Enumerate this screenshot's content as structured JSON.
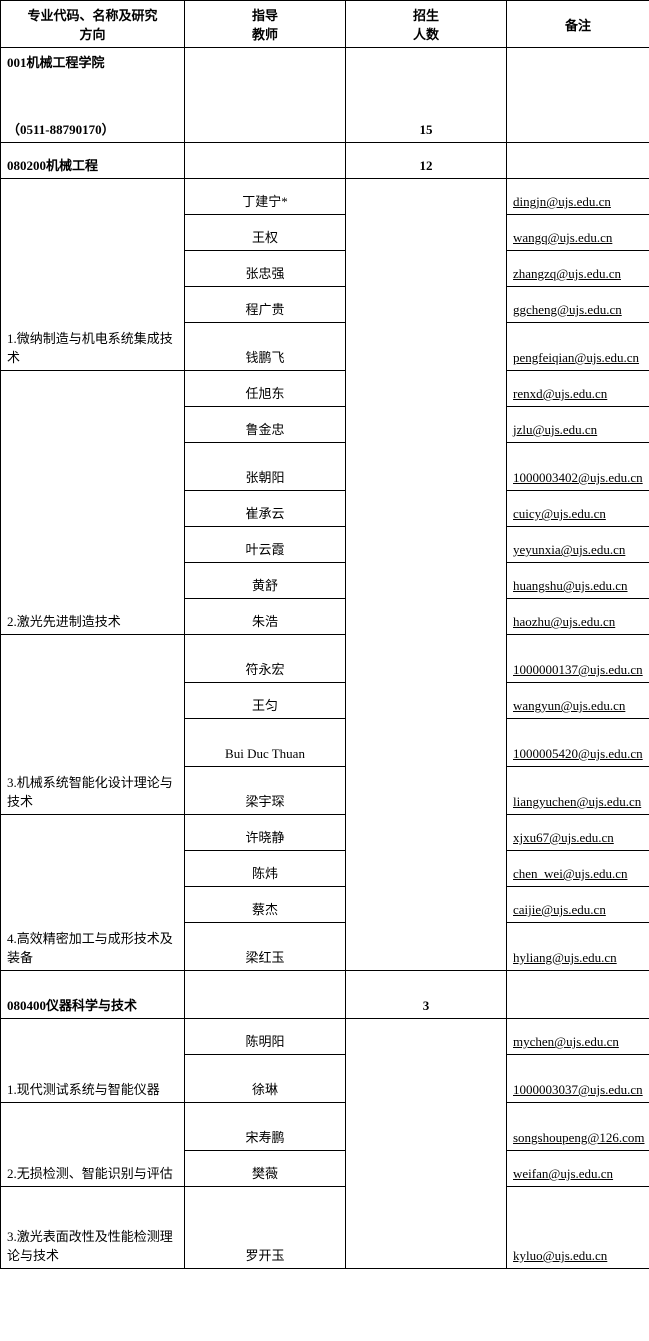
{
  "headers": {
    "col1_l1": "专业代码、名称及研究",
    "col1_l2": "方向",
    "col2_l1": "指导",
    "col2_l2": "教师",
    "col3_l1": "招生",
    "col3_l2": "人数",
    "col4": "备注"
  },
  "dept": {
    "name": "001机械工程学院",
    "phone": "（0511-88790170）",
    "count": "15"
  },
  "m1": {
    "code": "080200机械工程",
    "count": "12",
    "d1": {
      "name": "1.微纳制造与机电系统集成技术",
      "t": [
        "丁建宁*",
        "王权",
        "张忠强",
        "程广贵",
        "钱鹏飞"
      ],
      "e": [
        "dingjn@ujs.edu.cn",
        "wangq@ujs.edu.cn",
        "zhangzq@ujs.edu.cn",
        "ggcheng@ujs.edu.cn",
        "pengfeiqian@ujs.edu.cn"
      ]
    },
    "d2": {
      "name": "2.激光先进制造技术",
      "t": [
        "任旭东",
        "鲁金忠",
        "张朝阳",
        "崔承云",
        "叶云霞",
        "黄舒",
        "朱浩"
      ],
      "e": [
        "renxd@ujs.edu.cn",
        "jzlu@ujs.edu.cn",
        "1000003402@ujs.edu.cn",
        "cuicy@ujs.edu.cn",
        "yeyunxia@ujs.edu.cn",
        "huangshu@ujs.edu.cn",
        "haozhu@ujs.edu.cn"
      ]
    },
    "d3": {
      "name": "3.机械系统智能化设计理论与技术",
      "t": [
        "符永宏",
        "王匀",
        "Bui Duc Thuan",
        "梁宇琛"
      ],
      "e": [
        "1000000137@ujs.edu.cn",
        "wangyun@ujs.edu.cn",
        "1000005420@ujs.edu.cn",
        "liangyuchen@ujs.edu.cn"
      ]
    },
    "d4": {
      "name": "4.高效精密加工与成形技术及装备",
      "t": [
        "许晓静",
        "陈炜",
        "蔡杰",
        "梁红玉"
      ],
      "e": [
        "xjxu67@ujs.edu.cn",
        "chen_wei@ujs.edu.cn",
        "caijie@ujs.edu.cn",
        "hyliang@ujs.edu.cn"
      ]
    }
  },
  "m2": {
    "code": "080400仪器科学与技术",
    "count": "3",
    "d1": {
      "name": "1.现代测试系统与智能仪器",
      "t": [
        "陈明阳",
        "徐琳"
      ],
      "e": [
        "mychen@ujs.edu.cn",
        "1000003037@ujs.edu.cn"
      ]
    },
    "d2": {
      "name": "2.无损检测、智能识别与评估",
      "t": [
        "宋寿鹏",
        "樊薇"
      ],
      "e": [
        "songshoupeng@126.com",
        "weifan@ujs.edu.cn"
      ]
    },
    "d3": {
      "name": "3.激光表面改性及性能检测理论与技术",
      "t": [
        "罗开玉"
      ],
      "e": [
        "kyluo@ujs.edu.cn"
      ]
    }
  }
}
